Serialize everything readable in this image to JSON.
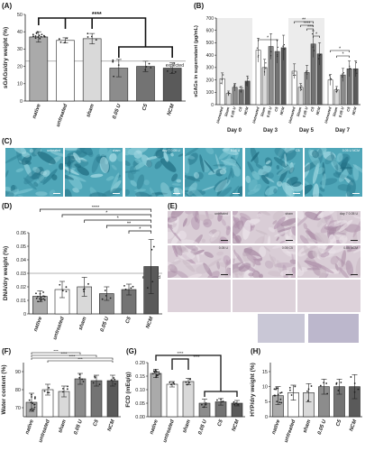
{
  "panels": {
    "A": {
      "label": "(A)",
      "ylabel": "sGAGs/dry weight (%)",
      "yticks": [
        "0",
        "10",
        "20",
        "30",
        "40",
        "50"
      ],
      "ylim": [
        0,
        50
      ],
      "categories": [
        "native",
        "untreated",
        "sham",
        "0.05 U",
        "C5",
        "NCM"
      ],
      "values": [
        37,
        35,
        36,
        19,
        20,
        19
      ],
      "errors": [
        3,
        1.5,
        3,
        5,
        3,
        3
      ],
      "fills": [
        "#aaaaaa",
        "#ffffff",
        "#d9d9d9",
        "#8c8c8c",
        "#737373",
        "#5a5a5a"
      ],
      "expected_label": "expected",
      "expected_value": 23,
      "sig": "****"
    },
    "B": {
      "label": "(B)",
      "ylabel": "sGAGs in supernatant (µg/mL)",
      "yticks": [
        "0",
        "100",
        "200",
        "300",
        "400",
        "500",
        "600",
        "700"
      ],
      "ylim": [
        0,
        700
      ],
      "groups": [
        "Day 0",
        "Day 3",
        "Day 5",
        "Day 7"
      ],
      "categories": [
        "Untreated",
        "Sham",
        "0.05 U",
        "C5",
        "NCM"
      ],
      "values": [
        [
          210,
          90,
          140,
          120,
          190
        ],
        [
          440,
          300,
          470,
          430,
          460
        ],
        [
          270,
          140,
          260,
          490,
          410
        ],
        [
          200,
          120,
          240,
          290,
          290
        ]
      ],
      "fills": [
        "#ffffff",
        "#d9d9d9",
        "#8c8c8c",
        "#737373",
        "#5a5a5a"
      ],
      "sig": [
        "*",
        "**",
        "****",
        "***",
        "*",
        "*",
        "*"
      ]
    },
    "C": {
      "label": "(C)",
      "images": [
        "untreated",
        "sham",
        "day 7 0.05 U",
        "0.05 U",
        "C5",
        "0.05 U NCM"
      ]
    },
    "D": {
      "label": "(D)",
      "ylabel": "DNA/dry weight (%)",
      "yticks": [
        "0",
        "0.01",
        "0.02",
        "0.03",
        "0.04",
        "0.05",
        "0.06"
      ],
      "ylim": [
        0,
        0.06
      ],
      "categories": [
        "native",
        "untreated",
        "sham",
        "0.05 U",
        "C5",
        "NCM"
      ],
      "values": [
        0.013,
        0.018,
        0.02,
        0.015,
        0.018,
        0.035
      ],
      "errors": [
        0.004,
        0.006,
        0.007,
        0.005,
        0.004,
        0.02
      ],
      "fills": [
        "#aaaaaa",
        "#ffffff",
        "#d9d9d9",
        "#8c8c8c",
        "#737373",
        "#5a5a5a"
      ],
      "expected_label": "expected",
      "expected_value": 0.03,
      "sig": [
        "****",
        "*",
        "*",
        "**",
        "*"
      ]
    },
    "E": {
      "label": "(E)",
      "images": [
        "untreated",
        "sham",
        "day 7 0.05 U",
        "0.05 U",
        "0.05 C5",
        "0.05 NCM"
      ]
    },
    "F": {
      "label": "(F)",
      "ylabel": "Water content (%)",
      "yticks": [
        "70",
        "80",
        "90"
      ],
      "ylim": [
        65,
        95
      ],
      "categories": [
        "native",
        "untreated",
        "sham",
        "0.05 U",
        "C5",
        "NCM"
      ],
      "values": [
        73,
        80,
        79,
        86,
        85,
        85
      ],
      "errors": [
        5,
        3,
        3,
        3,
        3,
        3
      ],
      "fills": [
        "#aaaaaa",
        "#ffffff",
        "#d9d9d9",
        "#8c8c8c",
        "#737373",
        "#5a5a5a"
      ],
      "sig": [
        "***",
        "****",
        "****",
        "***"
      ]
    },
    "G": {
      "label": "(G)",
      "ylabel": "FCD (mEq/g)",
      "yticks": [
        "0.00",
        "0.05",
        "0.10",
        "0.15",
        "0.20"
      ],
      "ylim": [
        0,
        0.2
      ],
      "categories": [
        "native",
        "untreated",
        "sham",
        "0.05 U",
        "C5",
        "NCM"
      ],
      "values": [
        0.16,
        0.12,
        0.13,
        0.05,
        0.055,
        0.05
      ],
      "errors": [
        0.015,
        0.01,
        0.012,
        0.015,
        0.012,
        0.01
      ],
      "fills": [
        "#aaaaaa",
        "#ffffff",
        "#d9d9d9",
        "#8c8c8c",
        "#737373",
        "#5a5a5a"
      ],
      "sig": [
        "****",
        "****"
      ]
    },
    "H": {
      "label": "(H)",
      "ylabel": "HYP/dry weight (%)",
      "yticks": [
        "0",
        "5",
        "10",
        "15"
      ],
      "ylim": [
        0,
        18
      ],
      "categories": [
        "native",
        "untreated",
        "sham",
        "0.05 U",
        "C5",
        "NCM"
      ],
      "values": [
        7,
        8,
        8,
        10,
        10,
        10
      ],
      "errors": [
        3,
        2.5,
        3,
        2.5,
        2.5,
        4
      ],
      "fills": [
        "#aaaaaa",
        "#ffffff",
        "#d9d9d9",
        "#8c8c8c",
        "#737373",
        "#5a5a5a"
      ]
    }
  },
  "chart_data": [
    {
      "type": "bar",
      "ylabel": "sGAGs/dry weight (%)",
      "categories": [
        "native",
        "untreated",
        "sham",
        "0.05 U",
        "C5",
        "NCM"
      ],
      "values": [
        37,
        35,
        36,
        19,
        20,
        19
      ],
      "ylim": [
        0,
        50
      ]
    },
    {
      "type": "bar",
      "ylabel": "sGAGs in supernatant (µg/mL)",
      "categories": [
        "Day 0",
        "Day 3",
        "Day 5",
        "Day 7"
      ],
      "series": [
        {
          "name": "Untreated",
          "values": [
            210,
            440,
            270,
            200
          ]
        },
        {
          "name": "Sham",
          "values": [
            90,
            300,
            140,
            120
          ]
        },
        {
          "name": "0.05 U",
          "values": [
            140,
            470,
            260,
            240
          ]
        },
        {
          "name": "C5",
          "values": [
            120,
            430,
            490,
            290
          ]
        },
        {
          "name": "NCM",
          "values": [
            190,
            460,
            410,
            290
          ]
        }
      ],
      "ylim": [
        0,
        700
      ]
    },
    {
      "type": "bar",
      "ylabel": "DNA/dry weight (%)",
      "categories": [
        "native",
        "untreated",
        "sham",
        "0.05 U",
        "C5",
        "NCM"
      ],
      "values": [
        0.013,
        0.018,
        0.02,
        0.015,
        0.018,
        0.035
      ],
      "ylim": [
        0,
        0.06
      ]
    },
    {
      "type": "bar",
      "ylabel": "Water content (%)",
      "categories": [
        "native",
        "untreated",
        "sham",
        "0.05 U",
        "C5",
        "NCM"
      ],
      "values": [
        73,
        80,
        79,
        86,
        85,
        85
      ],
      "ylim": [
        65,
        95
      ]
    },
    {
      "type": "bar",
      "ylabel": "FCD (mEq/g)",
      "categories": [
        "native",
        "untreated",
        "sham",
        "0.05 U",
        "C5",
        "NCM"
      ],
      "values": [
        0.16,
        0.12,
        0.13,
        0.05,
        0.055,
        0.05
      ],
      "ylim": [
        0,
        0.2
      ]
    },
    {
      "type": "bar",
      "ylabel": "HYP/dry weight (%)",
      "categories": [
        "native",
        "untreated",
        "sham",
        "0.05 U",
        "C5",
        "NCM"
      ],
      "values": [
        7,
        8,
        8,
        10,
        10,
        10
      ],
      "ylim": [
        0,
        18
      ]
    }
  ]
}
